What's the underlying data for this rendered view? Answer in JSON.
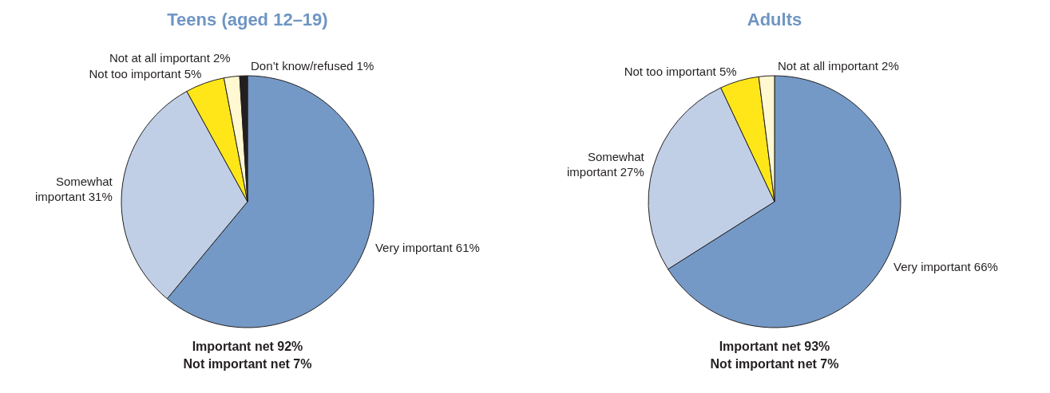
{
  "chart_data": [
    {
      "type": "pie",
      "title": "Teens (aged 12–19)",
      "categories": [
        "Very important",
        "Somewhat important",
        "Not too important",
        "Not at all important",
        "Don’t know/refused"
      ],
      "values": [
        61,
        31,
        5,
        2,
        1
      ],
      "value_labels": [
        "61%",
        "31%",
        "5%",
        "2%",
        "1%"
      ],
      "colors": [
        "#7499c6",
        "#c0cfe6",
        "#ffe619",
        "#fff8d0",
        "#231f20"
      ],
      "annotations": [
        "Important net 92%",
        "Not important net 7%"
      ]
    },
    {
      "type": "pie",
      "title": "Adults",
      "categories": [
        "Very important",
        "Somewhat important",
        "Not too important",
        "Not at all important"
      ],
      "values": [
        66,
        27,
        5,
        2
      ],
      "value_labels": [
        "66%",
        "27%",
        "5%",
        "2%"
      ],
      "colors": [
        "#7499c6",
        "#c0cfe6",
        "#ffe619",
        "#fff8d0"
      ],
      "annotations": [
        "Important net 93%",
        "Not important net 7%"
      ]
    }
  ]
}
